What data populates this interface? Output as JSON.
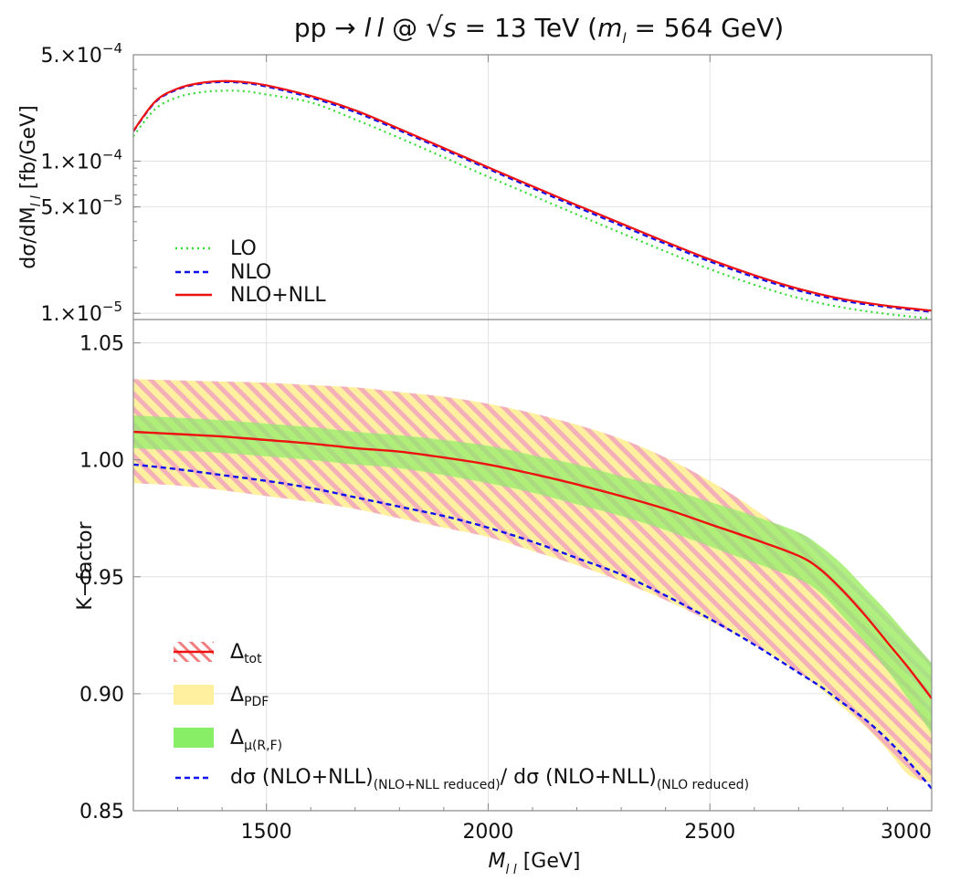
{
  "title": {
    "prefix": "pp → ",
    "slep1": "l",
    "slep2": "l",
    "mid": " @ ",
    "sqrt_arg": "s",
    "energy": " = 13 TeV (",
    "mass_sym": "m",
    "mass_sub": "l",
    "mass_val": " = 564 GeV)"
  },
  "colors": {
    "lo": "#33dd33",
    "nlo": "#1111ee",
    "nll": "#ee1111",
    "pdf": "#fff0a0",
    "tot_hatch": "#f4b0b8",
    "scale": "#88ee66",
    "reduced": "#1111ee"
  },
  "chart_data": [
    {
      "type": "line",
      "panel": "top",
      "yscale": "log",
      "ylabel": "dσ/dM",
      "ylabel_sub": "l l",
      "ylabel_unit": " [fb/GeV]",
      "xlim": [
        1200,
        3000
      ],
      "ylim": [
        9.1e-06,
        0.0005
      ],
      "yticks": [
        {
          "v": 0.0005,
          "mant": "5.×10",
          "exp": "−4"
        },
        {
          "v": 0.0001,
          "mant": "1.×10",
          "exp": "−4"
        },
        {
          "v": 5e-05,
          "mant": "5.×10",
          "exp": "−5"
        },
        {
          "v": 1e-05,
          "mant": "1.×10",
          "exp": "−5"
        }
      ],
      "grid": true,
      "legend_position": "bottom-left",
      "x": [
        1200,
        1250,
        1300,
        1350,
        1400,
        1450,
        1500,
        1600,
        1700,
        1800,
        1900,
        2000,
        2100,
        2200,
        2300,
        2400,
        2500,
        2600,
        2700,
        2800,
        2900,
        3000
      ],
      "series": [
        {
          "name": "LO",
          "style": "dotted",
          "values": [
            0.000146,
            0.000221,
            0.000263,
            0.000283,
            0.00029,
            0.000288,
            0.000274,
            0.000243,
            0.000188,
            0.000142,
            0.000106,
            7.9e-05,
            5.94e-05,
            4.46e-05,
            3.37e-05,
            2.55e-05,
            1.95e-05,
            1.54e-05,
            1.26e-05,
            1.09e-05,
            9.9e-06,
            9.2e-06
          ]
        },
        {
          "name": "NLO",
          "style": "dashed",
          "values": [
            0.000157,
            0.000245,
            0.000296,
            0.000322,
            0.000331,
            0.000326,
            0.000309,
            0.000262,
            0.00021,
            0.000159,
            0.000119,
            8.9e-05,
            6.65e-05,
            4.99e-05,
            3.77e-05,
            2.86e-05,
            2.19e-05,
            1.73e-05,
            1.41e-05,
            1.21e-05,
            1.1e-05,
            1.02e-05
          ]
        },
        {
          "name": "NLO+NLL",
          "style": "solid",
          "values": [
            0.000158,
            0.000248,
            0.0003,
            0.000326,
            0.000336,
            0.000331,
            0.000315,
            0.000268,
            0.000216,
            0.000163,
            0.000122,
            9.1e-05,
            6.84e-05,
            5.14e-05,
            3.89e-05,
            2.95e-05,
            2.26e-05,
            1.78e-05,
            1.45e-05,
            1.24e-05,
            1.12e-05,
            1.04e-05
          ]
        }
      ]
    },
    {
      "type": "area",
      "panel": "bottom",
      "ylabel": "K−factor",
      "xlabel": "M",
      "xlabel_sub": "l l",
      "xlabel_unit": "  [GeV]",
      "xlim": [
        1200,
        3000
      ],
      "ylim": [
        0.85,
        1.06
      ],
      "xticks": [
        1500,
        2000,
        2500,
        3000
      ],
      "yticks": [
        "0.85",
        "0.90",
        "0.95",
        "1.00",
        "1.05"
      ],
      "grid": true,
      "legend_position": "bottom-left",
      "x": [
        1200,
        1300,
        1400,
        1500,
        1600,
        1700,
        1800,
        1900,
        2000,
        2100,
        2200,
        2300,
        2400,
        2500,
        2600,
        2700,
        2750,
        2800,
        2850,
        2900,
        2950,
        3000
      ],
      "bands": [
        {
          "name": "Δ_tot",
          "label": "Δ",
          "sub": "tot",
          "upper": [
            1.0345,
            1.034,
            1.0335,
            1.033,
            1.032,
            1.031,
            1.029,
            1.027,
            1.024,
            1.02,
            1.015,
            1.009,
            1.001,
            0.991,
            0.979,
            0.965,
            0.956,
            0.946,
            0.935,
            0.922,
            0.906,
            0.889
          ],
          "lower": [
            0.99,
            0.989,
            0.987,
            0.9845,
            0.982,
            0.979,
            0.975,
            0.971,
            0.967,
            0.961,
            0.955,
            0.948,
            0.94,
            0.931,
            0.921,
            0.909,
            0.902,
            0.894,
            0.886,
            0.876,
            0.865,
            0.862
          ]
        },
        {
          "name": "Δ_PDF",
          "label": "Δ",
          "sub": "PDF",
          "upper": [
            1.0335,
            1.033,
            1.0325,
            1.032,
            1.031,
            1.03,
            1.028,
            1.026,
            1.023,
            1.019,
            1.014,
            1.008,
            1.0,
            0.99,
            0.978,
            0.964,
            0.955,
            0.945,
            0.934,
            0.921,
            0.905,
            0.888
          ],
          "lower": [
            0.991,
            0.99,
            0.988,
            0.9855,
            0.983,
            0.98,
            0.976,
            0.972,
            0.968,
            0.962,
            0.956,
            0.949,
            0.941,
            0.932,
            0.922,
            0.91,
            0.903,
            0.895,
            0.887,
            0.877,
            0.866,
            0.864
          ]
        },
        {
          "name": "Δ_μ(R,F)",
          "label": "Δ",
          "sub": "μ(R,F)",
          "upper": [
            1.019,
            1.018,
            1.017,
            1.0155,
            1.014,
            1.012,
            1.0105,
            1.0085,
            1.006,
            1.002,
            0.998,
            0.993,
            0.988,
            0.982,
            0.976,
            0.969,
            0.963,
            0.955,
            0.945,
            0.935,
            0.924,
            0.913
          ],
          "lower": [
            1.005,
            1.004,
            1.003,
            1.0015,
            1.0,
            0.998,
            0.9965,
            0.9935,
            0.99,
            0.986,
            0.981,
            0.976,
            0.97,
            0.963,
            0.956,
            0.949,
            0.943,
            0.933,
            0.922,
            0.91,
            0.897,
            0.883
          ]
        }
      ],
      "series": [
        {
          "name": "NLO+NLL",
          "style": "solid",
          "values": [
            1.012,
            1.011,
            1.01,
            1.0085,
            1.007,
            1.005,
            1.0035,
            1.001,
            0.998,
            0.994,
            0.9895,
            0.9845,
            0.979,
            0.9725,
            0.966,
            0.959,
            0.953,
            0.944,
            0.9335,
            0.922,
            0.9105,
            0.898
          ]
        },
        {
          "name": "dσ (NLO+NLL)(NLO+NLL reduced)/ dσ (NLO+NLL)(NLO reduced)",
          "style": "dashed",
          "values": [
            0.998,
            0.996,
            0.9935,
            0.991,
            0.988,
            0.984,
            0.98,
            0.976,
            0.971,
            0.965,
            0.958,
            0.951,
            0.942,
            0.932,
            0.921,
            0.909,
            0.903,
            0.896,
            0.889,
            0.8805,
            0.8705,
            0.8595
          ]
        }
      ],
      "legend": {
        "ratio": {
          "pre": "dσ (NLO+NLL)",
          "sub1": "(NLO+NLL reduced)",
          "mid": "/ dσ (NLO+NLL)",
          "sub2": "(NLO reduced)"
        }
      }
    }
  ]
}
